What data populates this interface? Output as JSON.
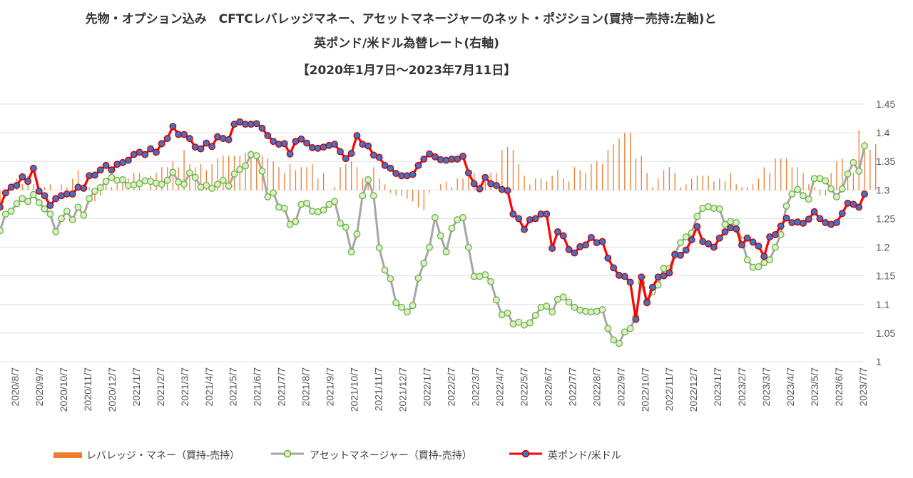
{
  "title": {
    "line1": "先物・オプション込み　CFTCレバレッジマネー、アセットマネージャーのネット・ポジション(買持ー売持:左軸)と",
    "line2": "英ポンド/米ドル為替レート(右軸)",
    "line3": "【2020年1月7日～2023年7月11日】"
  },
  "legend": {
    "leveraged": "レバレッジ・マネー（買持-売持）",
    "asset": "アセットマネージャー（買持-売持）",
    "gbpusd": "英ポンド/米ドル"
  },
  "colors": {
    "leveraged": "#ED7D31",
    "asset": "#A6A6A6",
    "asset_marker_fill": "#D9F2C4",
    "asset_marker_stroke": "#70AD47",
    "gbpusd": "#FF0000",
    "gbpusd_marker_fill": "#4472C4",
    "grid": "#E0E0E0"
  },
  "chart_data": {
    "type": "line",
    "title": "先物・オプション込み CFTCレバレッジマネー、アセットマネージャーのネット・ポジションと英ポンド/米ドル為替レート",
    "right_axis": {
      "label": "英ポンド/米ドル",
      "ylim": [
        1.0,
        1.45
      ],
      "ticks": [
        "1.45",
        "1.4",
        "1.35",
        "1.3",
        "1.25",
        "1.2",
        "1.15",
        "1.1",
        "1.05",
        "1"
      ]
    },
    "x_tick_labels": [
      "2020/8/7",
      "2020/9/7",
      "2020/10/7",
      "2020/11/7",
      "2020/12/7",
      "2021/1/7",
      "2021/2/7",
      "2021/3/7",
      "2021/4/7",
      "2021/5/7",
      "2021/6/7",
      "2021/7/7",
      "2021/8/7",
      "2021/9/7",
      "2021/10/7",
      "2021/11/7",
      "2021/12/7",
      "2022/1/7",
      "2022/2/7",
      "2022/3/7",
      "2022/4/7",
      "2022/5/7",
      "2022/6/7",
      "2022/7/7",
      "2022/8/7",
      "2022/9/7",
      "2022/10/7",
      "2022/11/7",
      "2022/12/7",
      "2023/1/7",
      "2023/2/7",
      "2023/3/7",
      "2023/4/7",
      "2023/5/7",
      "2023/6/7",
      "2023/7/7"
    ],
    "x_start": "2020/7/7",
    "x_end": "2023/7/11",
    "series": [
      {
        "name": "英ポンド/米ドル",
        "axis": "right",
        "values": [
          1.27,
          1.295,
          1.305,
          1.308,
          1.323,
          1.315,
          1.338,
          1.298,
          1.29,
          1.273,
          1.285,
          1.29,
          1.293,
          1.293,
          1.305,
          1.303,
          1.325,
          1.326,
          1.335,
          1.343,
          1.335,
          1.345,
          1.348,
          1.352,
          1.362,
          1.366,
          1.362,
          1.372,
          1.366,
          1.381,
          1.39,
          1.411,
          1.397,
          1.397,
          1.39,
          1.375,
          1.372,
          1.382,
          1.376,
          1.393,
          1.39,
          1.388,
          1.415,
          1.419,
          1.415,
          1.415,
          1.416,
          1.408,
          1.395,
          1.385,
          1.38,
          1.381,
          1.363,
          1.385,
          1.389,
          1.382,
          1.374,
          1.373,
          1.375,
          1.378,
          1.38,
          1.367,
          1.355,
          1.364,
          1.395,
          1.38,
          1.377,
          1.361,
          1.357,
          1.343,
          1.338,
          1.329,
          1.325,
          1.325,
          1.327,
          1.343,
          1.354,
          1.363,
          1.358,
          1.353,
          1.352,
          1.354,
          1.354,
          1.359,
          1.33,
          1.311,
          1.302,
          1.322,
          1.311,
          1.308,
          1.301,
          1.299,
          1.258,
          1.25,
          1.231,
          1.248,
          1.25,
          1.258,
          1.258,
          1.198,
          1.227,
          1.22,
          1.196,
          1.19,
          1.201,
          1.204,
          1.217,
          1.208,
          1.21,
          1.181,
          1.164,
          1.151,
          1.149,
          1.139,
          1.074,
          1.148,
          1.103,
          1.13,
          1.148,
          1.15,
          1.155,
          1.187,
          1.186,
          1.195,
          1.213,
          1.236,
          1.21,
          1.206,
          1.2,
          1.216,
          1.227,
          1.234,
          1.232,
          1.204,
          1.216,
          1.209,
          1.202,
          1.184,
          1.218,
          1.222,
          1.237,
          1.251,
          1.243,
          1.244,
          1.242,
          1.249,
          1.262,
          1.25,
          1.243,
          1.24,
          1.243,
          1.259,
          1.277,
          1.275,
          1.27,
          1.293
        ]
      },
      {
        "name": "アセットマネージャー（買持-売持）",
        "axis": "left",
        "unit": "scaled to right axis",
        "values": [
          1.229,
          1.258,
          1.263,
          1.276,
          1.285,
          1.28,
          1.292,
          1.278,
          1.267,
          1.258,
          1.227,
          1.25,
          1.263,
          1.248,
          1.27,
          1.256,
          1.285,
          1.298,
          1.304,
          1.315,
          1.322,
          1.317,
          1.318,
          1.308,
          1.309,
          1.311,
          1.316,
          1.315,
          1.312,
          1.31,
          1.317,
          1.331,
          1.314,
          1.31,
          1.33,
          1.322,
          1.305,
          1.308,
          1.303,
          1.31,
          1.317,
          1.307,
          1.328,
          1.336,
          1.342,
          1.362,
          1.36,
          1.333,
          1.288,
          1.295,
          1.27,
          1.268,
          1.24,
          1.245,
          1.275,
          1.277,
          1.263,
          1.262,
          1.265,
          1.275,
          1.28,
          1.242,
          1.235,
          1.192,
          1.223,
          1.29,
          1.318,
          1.29,
          1.199,
          1.16,
          1.145,
          1.103,
          1.095,
          1.087,
          1.098,
          1.146,
          1.172,
          1.2,
          1.252,
          1.22,
          1.192,
          1.233,
          1.248,
          1.252,
          1.2,
          1.149,
          1.149,
          1.152,
          1.14,
          1.108,
          1.082,
          1.085,
          1.066,
          1.069,
          1.064,
          1.068,
          1.081,
          1.095,
          1.097,
          1.087,
          1.109,
          1.113,
          1.104,
          1.095,
          1.09,
          1.088,
          1.087,
          1.088,
          1.091,
          1.058,
          1.038,
          1.032,
          1.052,
          1.058,
          1.078,
          1.138,
          1.105,
          1.122,
          1.134,
          1.163,
          1.163,
          1.188,
          1.208,
          1.218,
          1.225,
          1.254,
          1.268,
          1.271,
          1.268,
          1.267,
          1.24,
          1.245,
          1.243,
          1.212,
          1.178,
          1.165,
          1.166,
          1.173,
          1.178,
          1.2,
          1.222,
          1.272,
          1.293,
          1.301,
          1.29,
          1.284,
          1.32,
          1.32,
          1.316,
          1.302,
          1.288,
          1.302,
          1.328,
          1.348,
          1.333,
          1.377
        ]
      },
      {
        "name": "レバレッジ・マネー（買持-売持）",
        "axis": "left",
        "unit": "scaled to right axis (bars from 1.30)",
        "values": [
          1.275,
          1.29,
          1.3,
          1.32,
          1.31,
          1.325,
          1.31,
          1.3,
          1.305,
          1.31,
          1.3,
          1.31,
          1.305,
          1.32,
          1.335,
          1.31,
          1.305,
          1.28,
          1.29,
          1.31,
          1.305,
          1.31,
          1.315,
          1.32,
          1.33,
          1.33,
          1.3,
          1.325,
          1.33,
          1.34,
          1.34,
          1.35,
          1.34,
          1.37,
          1.345,
          1.34,
          1.345,
          1.335,
          1.345,
          1.355,
          1.36,
          1.36,
          1.36,
          1.36,
          1.365,
          1.36,
          1.36,
          1.36,
          1.355,
          1.35,
          1.34,
          1.33,
          1.345,
          1.335,
          1.34,
          1.34,
          1.345,
          1.32,
          1.33,
          1.3,
          1.305,
          1.34,
          1.345,
          1.35,
          1.34,
          1.32,
          1.32,
          1.34,
          1.32,
          1.31,
          1.295,
          1.29,
          1.29,
          1.285,
          1.28,
          1.27,
          1.265,
          1.295,
          1.3,
          1.31,
          1.315,
          1.305,
          1.32,
          1.32,
          1.325,
          1.33,
          1.31,
          1.315,
          1.33,
          1.33,
          1.37,
          1.375,
          1.37,
          1.345,
          1.325,
          1.31,
          1.32,
          1.32,
          1.315,
          1.325,
          1.335,
          1.32,
          1.315,
          1.34,
          1.335,
          1.33,
          1.345,
          1.35,
          1.345,
          1.37,
          1.38,
          1.39,
          1.4,
          1.4,
          1.355,
          1.36,
          1.33,
          1.305,
          1.32,
          1.335,
          1.34,
          1.33,
          1.305,
          1.31,
          1.32,
          1.325,
          1.325,
          1.325,
          1.315,
          1.32,
          1.315,
          1.33,
          1.31,
          1.305,
          1.305,
          1.31,
          1.32,
          1.34,
          1.33,
          1.355,
          1.355,
          1.355,
          1.34,
          1.34,
          1.33,
          1.31,
          1.305,
          1.29,
          1.29,
          1.33,
          1.35,
          1.355,
          1.33,
          1.33,
          1.405,
          1.385,
          1.37,
          1.38
        ]
      }
    ]
  }
}
